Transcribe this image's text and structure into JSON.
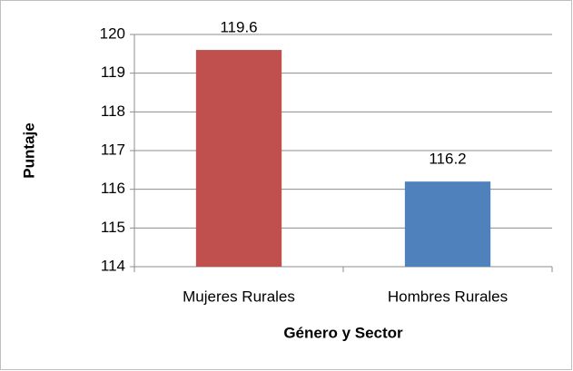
{
  "chart_data": {
    "type": "bar",
    "categories": [
      "Mujeres Rurales",
      "Hombres Rurales"
    ],
    "values": [
      119.6,
      116.2
    ],
    "colors": [
      "#c0504d",
      "#4f81bd"
    ],
    "xlabel": "Género y Sector",
    "ylabel": "Puntaje",
    "ylim": [
      114,
      120
    ],
    "yticks": [
      114,
      115,
      116,
      117,
      118,
      119,
      120
    ],
    "grid": true
  }
}
